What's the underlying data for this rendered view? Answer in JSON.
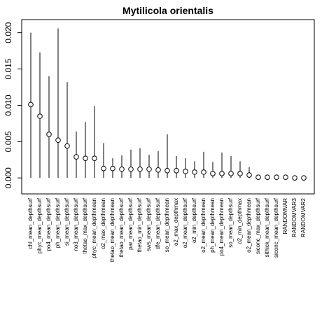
{
  "chart_data": {
    "type": "scatter",
    "title": "Mytilicola orientalis",
    "xlabel": "",
    "ylabel": "",
    "ylim": [
      -0.0022,
      0.0218
    ],
    "yticks": [
      0.0,
      0.005,
      0.01,
      0.015,
      0.02
    ],
    "ytick_labels": [
      "0.000",
      "0.005",
      "0.010",
      "0.015",
      "0.020"
    ],
    "grid": false,
    "point_style": "open-circle",
    "range_style": "vertical-line",
    "categories": [
      "chl_mean_depthsurf",
      "phyc_mean_depthsurf",
      "po4_mean_depthsurf",
      "ph_mean_depthsurf",
      "si_mean_depthsurf",
      "no3_mean_depthsurf",
      "thetao_max_depthsurf",
      "phyc_mean_depthmean",
      "o2_max_depthmean",
      "thetao_mean_depthmean",
      "thetao_mean_depthsurf",
      "par_mean_depthsurf",
      "thetao_min_depthsurf",
      "sws_mean_depthsurf",
      "dfe_mean_depthsurf",
      "so_mean_depthmean",
      "o2_max_depthmax",
      "o2_mean_depthsurf",
      "o2_min_depthsurf",
      "o2_mean_depthmean",
      "ph_mean_depthmean",
      "po4_mean_depthmean",
      "so_mean_depthsurf",
      "o2_min_depthmax",
      "o2_mean_depthmean",
      "siconc_max_depthsurf",
      "sithick_mean_depthsurf",
      "siconc_mean_depthsurf",
      "RANDOMVAR",
      "RANDOMVAR3",
      "RANDOMVAR2"
    ],
    "values": [
      0.0101,
      0.0085,
      0.006,
      0.0052,
      0.0044,
      0.0029,
      0.0027,
      0.0027,
      0.0013,
      0.0013,
      0.0012,
      0.0012,
      0.0012,
      0.0012,
      0.0011,
      0.001,
      0.001,
      0.0009,
      0.0008,
      0.0008,
      0.0006,
      0.0006,
      0.0006,
      0.0006,
      0.0004,
      0.0001,
      0.0001,
      0.0001,
      0.0001,
      0.0,
      0.0
    ],
    "upper": [
      0.02,
      0.0173,
      0.014,
      0.0206,
      0.0132,
      0.0064,
      0.0077,
      0.0099,
      0.0048,
      0.0027,
      0.0031,
      0.0039,
      0.0041,
      0.0032,
      0.0037,
      0.006,
      0.003,
      0.0027,
      0.0023,
      0.0036,
      0.0022,
      0.0035,
      0.003,
      0.0023,
      0.0015,
      0.0004,
      0.0003,
      0.0003,
      0.0002,
      0.0001,
      0.0001
    ],
    "lower": [
      0,
      0,
      0,
      0,
      0,
      0,
      0,
      0,
      0,
      0,
      0,
      0,
      0,
      0,
      0,
      0,
      0,
      0,
      0,
      0,
      0,
      0,
      0,
      0,
      0,
      0,
      0,
      0,
      0,
      0,
      0
    ],
    "colors": {
      "ink": "#000000",
      "background": "#ffffff"
    }
  }
}
